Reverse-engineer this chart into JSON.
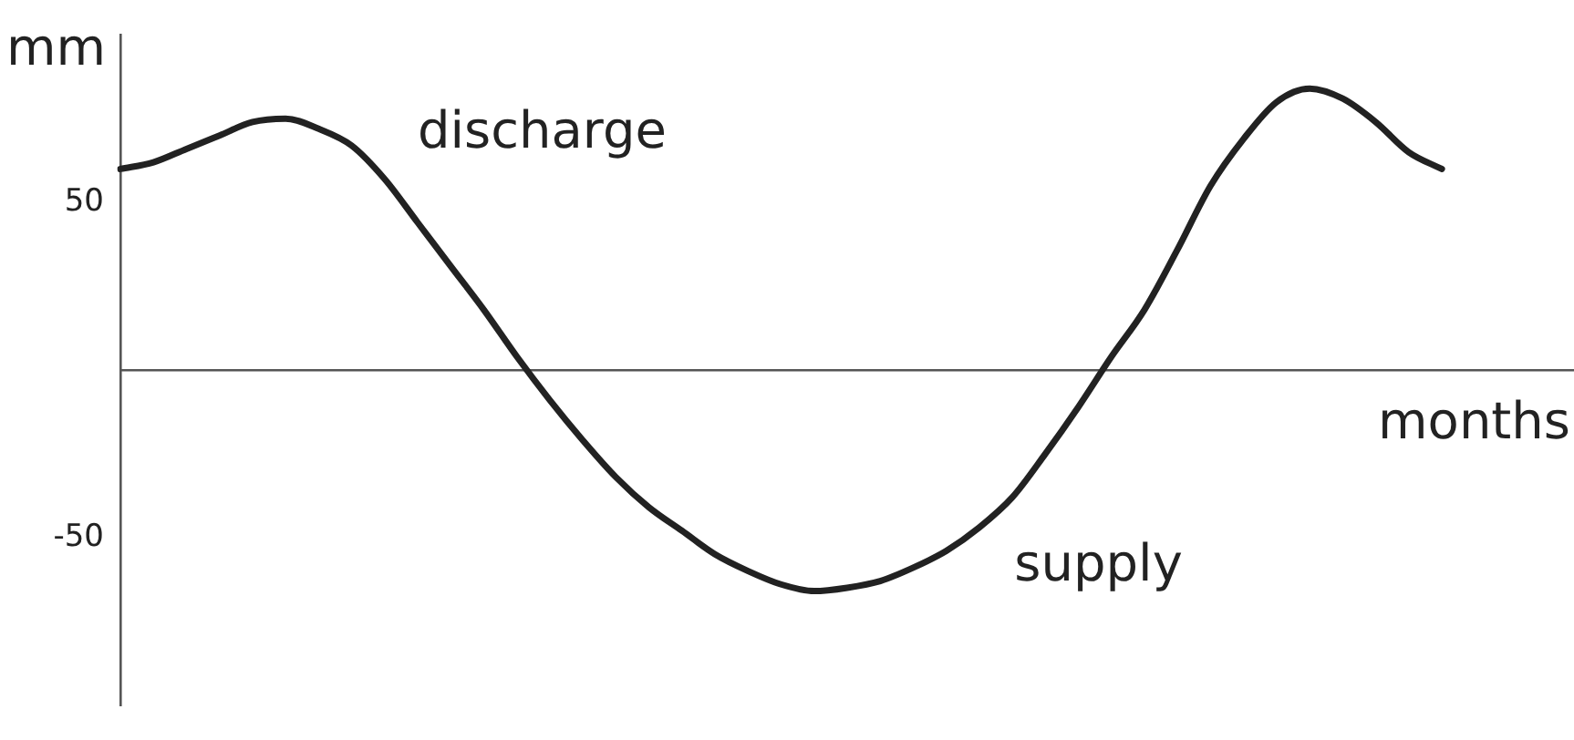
{
  "chart_data": {
    "type": "line",
    "ylabel": "mm",
    "xlabel": "months",
    "categories": [
      null,
      null,
      null,
      null,
      null,
      null,
      null,
      null,
      null,
      null,
      null,
      null,
      null,
      null,
      null,
      null,
      null,
      null,
      null,
      null,
      null,
      null,
      null,
      null,
      null,
      null,
      null,
      null,
      null,
      null,
      null,
      null,
      null,
      null,
      null,
      null,
      null,
      null,
      null,
      null,
      null,
      null,
      null,
      null,
      null
    ],
    "values": [
      60,
      62,
      66,
      70,
      74,
      75,
      72,
      67,
      57,
      44,
      31,
      18,
      4,
      -9,
      -21,
      -32,
      -41,
      -48,
      -55,
      -60,
      -64,
      -66,
      -65,
      -63,
      -59,
      -54,
      -47,
      -38,
      -25,
      -11,
      4,
      18,
      36,
      55,
      69,
      80,
      84,
      81,
      74,
      65,
      60,
      null,
      null,
      null,
      null
    ],
    "color": "#222222",
    "ylim": [
      -100,
      100
    ],
    "yticks": [
      -50,
      50
    ],
    "tick_labels": "y",
    "marker": "none",
    "line_style": "solid",
    "annotations": [
      "discharge",
      "supply"
    ]
  }
}
